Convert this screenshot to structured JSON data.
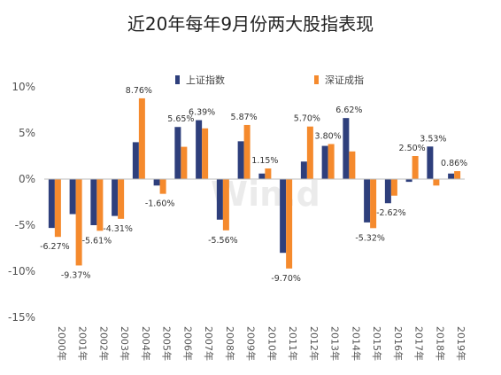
{
  "chart_data": {
    "type": "bar",
    "title": "近20年每年9月份两大股指表现",
    "categories": [
      "2000年",
      "2001年",
      "2002年",
      "2003年",
      "2004年",
      "2005年",
      "2006年",
      "2007年",
      "2008年",
      "2009年",
      "2010年",
      "2011年",
      "2012年",
      "2013年",
      "2014年",
      "2015年",
      "2016年",
      "2017年",
      "2018年",
      "2019年"
    ],
    "series": [
      {
        "name": "上证指数",
        "color": "#2E3F7C",
        "values": [
          -5.3,
          -3.8,
          -5.0,
          -4.0,
          4.0,
          -0.7,
          5.65,
          6.39,
          -4.4,
          4.1,
          0.6,
          -8.0,
          1.9,
          3.6,
          6.62,
          -4.7,
          -2.62,
          -0.3,
          3.53,
          0.6
        ]
      },
      {
        "name": "深证成指",
        "color": "#F58A2D",
        "values": [
          -6.27,
          -9.37,
          -5.61,
          -4.31,
          8.76,
          -1.6,
          3.5,
          5.5,
          -5.56,
          5.87,
          1.15,
          -9.7,
          5.7,
          3.8,
          3.0,
          -5.32,
          -1.8,
          2.5,
          -0.7,
          0.86
        ]
      }
    ],
    "data_labels": [
      {
        "category": "2000年",
        "text": "-6.27%"
      },
      {
        "category": "2001年",
        "text": "-9.37%"
      },
      {
        "category": "2002年",
        "text": "-5.61%"
      },
      {
        "category": "2003年",
        "text": "-4.31%"
      },
      {
        "category": "2004年",
        "text": "8.76%"
      },
      {
        "category": "2005年",
        "text": "-1.60%"
      },
      {
        "category": "2006年",
        "text": "5.65%"
      },
      {
        "category": "2007年",
        "text": "6.39%"
      },
      {
        "category": "2008年",
        "text": "-5.56%"
      },
      {
        "category": "2009年",
        "text": "5.87%"
      },
      {
        "category": "2010年",
        "text": "1.15%"
      },
      {
        "category": "2011年",
        "text": "-9.70%"
      },
      {
        "category": "2012年",
        "text": "5.70%"
      },
      {
        "category": "2013年",
        "text": "3.80%"
      },
      {
        "category": "2014年",
        "text": "6.62%"
      },
      {
        "category": "2015年",
        "text": "-5.32%"
      },
      {
        "category": "2016年",
        "text": "-2.62%"
      },
      {
        "category": "2017年",
        "text": "2.50%"
      },
      {
        "category": "2018年",
        "text": "3.53%"
      },
      {
        "category": "2019年",
        "text": "0.86%"
      }
    ],
    "ylim": [
      -15,
      10
    ],
    "yticks": [
      10,
      5,
      0,
      -5,
      -10,
      -15
    ],
    "ytick_labels": [
      "10%",
      "5%",
      "0%",
      "-5%",
      "-10%",
      "-15%"
    ],
    "xlabel": "",
    "ylabel": "",
    "grid": false,
    "legend_position": "top"
  },
  "watermark": "Win.d"
}
